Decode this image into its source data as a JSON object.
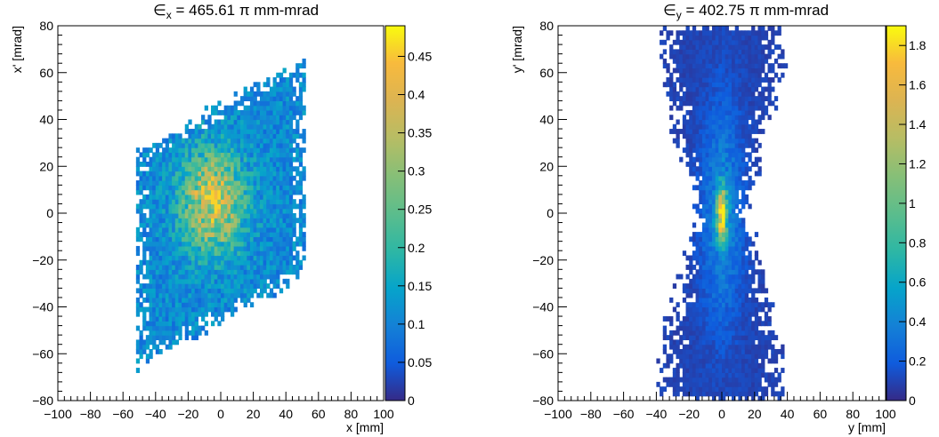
{
  "chart_data": [
    {
      "type": "heatmap",
      "title_prefix": "∈",
      "title_sub": "x",
      "title_suffix": " = 465.61 π mm-mrad",
      "xlabel": "x [mm]",
      "ylabel": "x' [mrad]",
      "xlim": [
        -100,
        100
      ],
      "ylim": [
        -80,
        80
      ],
      "xticks": [
        -100,
        -80,
        -60,
        -40,
        -20,
        0,
        20,
        40,
        60,
        80,
        100
      ],
      "yticks": [
        -80,
        -60,
        -40,
        -20,
        0,
        20,
        40,
        60,
        80
      ],
      "colorbar": {
        "range": [
          0,
          0.49
        ],
        "ticks": [
          0,
          0.05,
          0.1,
          0.15,
          0.2,
          0.25,
          0.3,
          0.35,
          0.4,
          0.45
        ],
        "tick_labels": [
          "0",
          "0.05",
          "0.1",
          "0.15",
          "0.2",
          "0.25",
          "0.3",
          "0.35",
          "0.4",
          "0.45"
        ]
      },
      "distribution": {
        "shape": "parallelogram",
        "x_range": [
          -50,
          50
        ],
        "x_prime_at_x_min": [
          -65,
          27
        ],
        "x_prime_at_x_max": [
          -27,
          65
        ],
        "peak_value": 0.46,
        "peak_center": [
          -5,
          5
        ]
      }
    },
    {
      "type": "heatmap",
      "title_prefix": "∈",
      "title_sub": "y",
      "title_suffix": " = 402.75 π mm-mrad",
      "xlabel": "y [mm]",
      "ylabel": "y' [mrad]",
      "xlim": [
        -100,
        100
      ],
      "ylim": [
        -80,
        80
      ],
      "xticks": [
        -100,
        -80,
        -60,
        -40,
        -20,
        0,
        20,
        40,
        60,
        80,
        100
      ],
      "yticks": [
        -80,
        -60,
        -40,
        -20,
        0,
        20,
        40,
        60,
        80
      ],
      "colorbar": {
        "range": [
          0,
          1.9
        ],
        "ticks": [
          0,
          0.2,
          0.4,
          0.6,
          0.8,
          1,
          1.2,
          1.4,
          1.6,
          1.8
        ],
        "tick_labels": [
          "0",
          "0.2",
          "0.4",
          "0.6",
          "0.8",
          "1",
          "1.2",
          "1.4",
          "1.6",
          "1.8"
        ]
      },
      "distribution": {
        "shape": "bowtie",
        "y_range": [
          -50,
          50
        ],
        "y_prime_range": [
          -80,
          80
        ],
        "peak_value": 1.85,
        "peak_center": [
          0,
          0
        ]
      }
    }
  ]
}
